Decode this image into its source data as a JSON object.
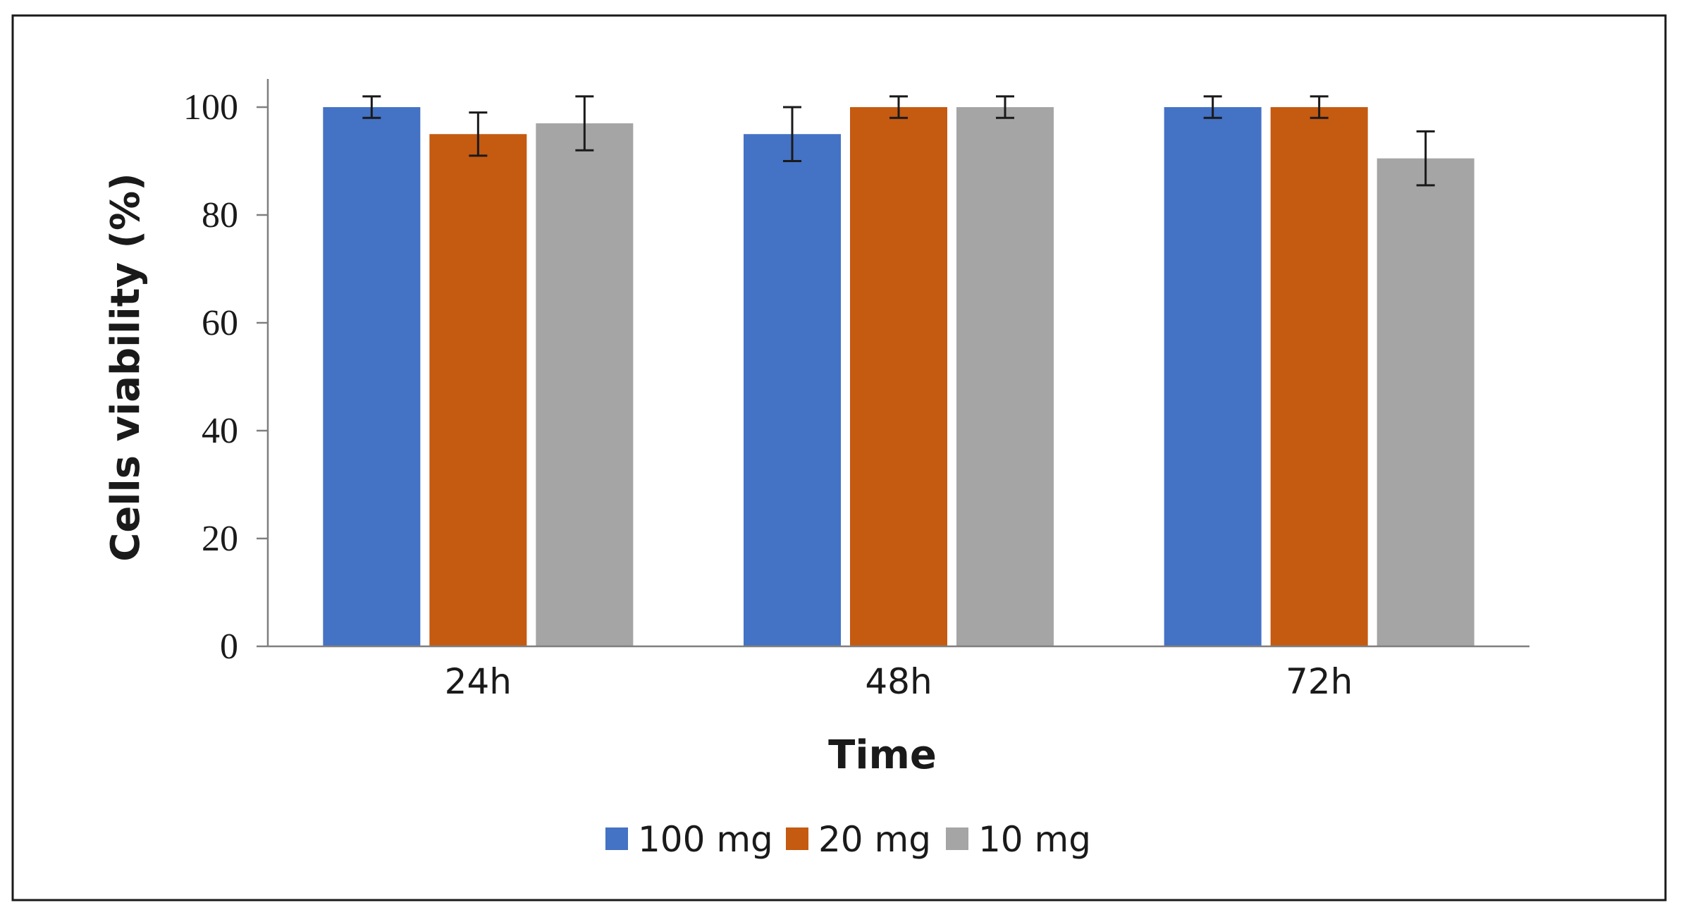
{
  "chart_data": {
    "type": "bar",
    "title": "",
    "xlabel": "Time",
    "ylabel": "Cells viability (%)",
    "categories": [
      "24h",
      "48h",
      "72h"
    ],
    "ylim": [
      0,
      100
    ],
    "yticks": [
      0,
      20,
      40,
      60,
      80,
      100
    ],
    "grid": false,
    "legend_position": "bottom",
    "series": [
      {
        "name": "100 mg",
        "color": "#4472C4",
        "values": [
          100,
          95,
          100
        ],
        "errors": [
          2,
          5,
          2
        ]
      },
      {
        "name": "20 mg",
        "color": "#C55A11",
        "values": [
          95,
          100,
          100
        ],
        "errors": [
          4,
          2,
          2
        ]
      },
      {
        "name": "10 mg",
        "color": "#A5A5A5",
        "values": [
          97,
          100,
          90.5
        ],
        "errors": [
          5,
          2,
          5
        ]
      }
    ]
  }
}
